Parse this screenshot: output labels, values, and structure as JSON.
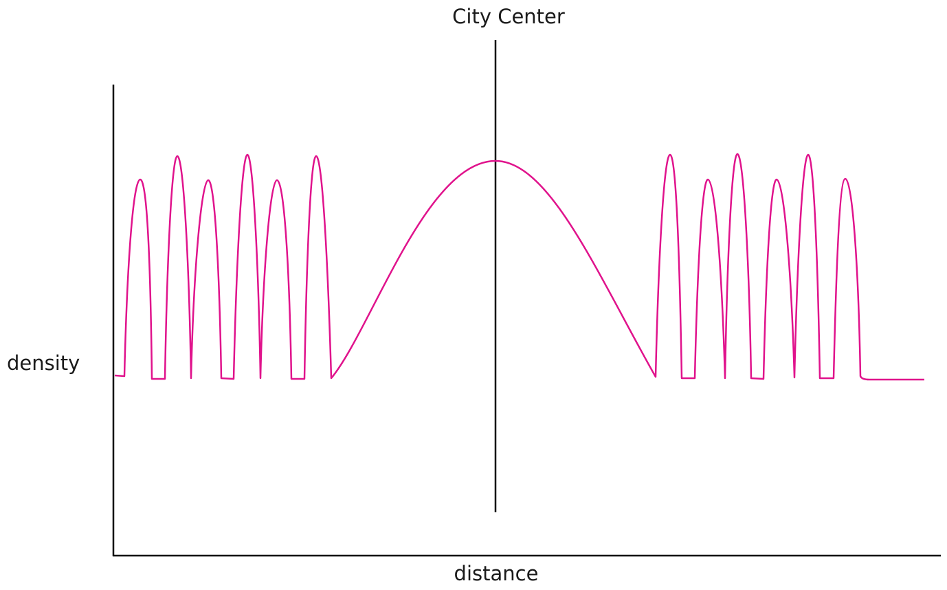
{
  "center_label": "City Center",
  "y_axis_label": "density",
  "x_axis_label": "distance"
}
